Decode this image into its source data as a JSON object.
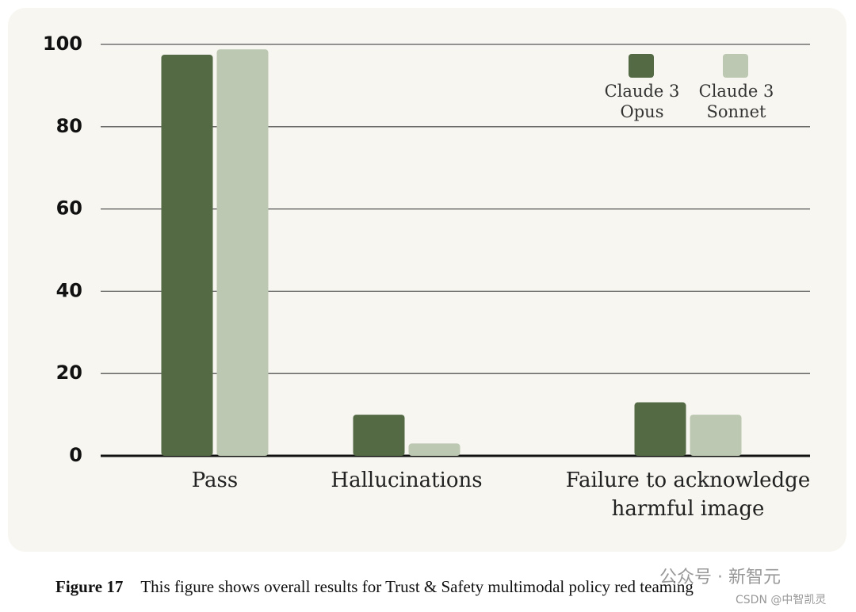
{
  "chart_data": {
    "type": "bar",
    "categories": [
      "Pass",
      "Hallucinations",
      "Failure to acknowledge harmful image"
    ],
    "series": [
      {
        "name": "Claude 3 Opus",
        "color": "#536a45",
        "values": [
          97.5,
          10,
          13
        ]
      },
      {
        "name": "Claude 3 Sonnet",
        "color": "#bcc8b2",
        "values": [
          98.8,
          3,
          10
        ]
      }
    ],
    "ylim": [
      0,
      100
    ],
    "yticks": [
      0,
      20,
      40,
      60,
      80,
      100
    ],
    "grid": true,
    "legend": "top-right"
  },
  "caption": {
    "label": "Figure 17",
    "text": "This figure shows overall results for Trust & Safety multimodal policy red teaming"
  },
  "watermark": [
    "公众号 · 新智元",
    "CSDN @中智凯灵"
  ]
}
